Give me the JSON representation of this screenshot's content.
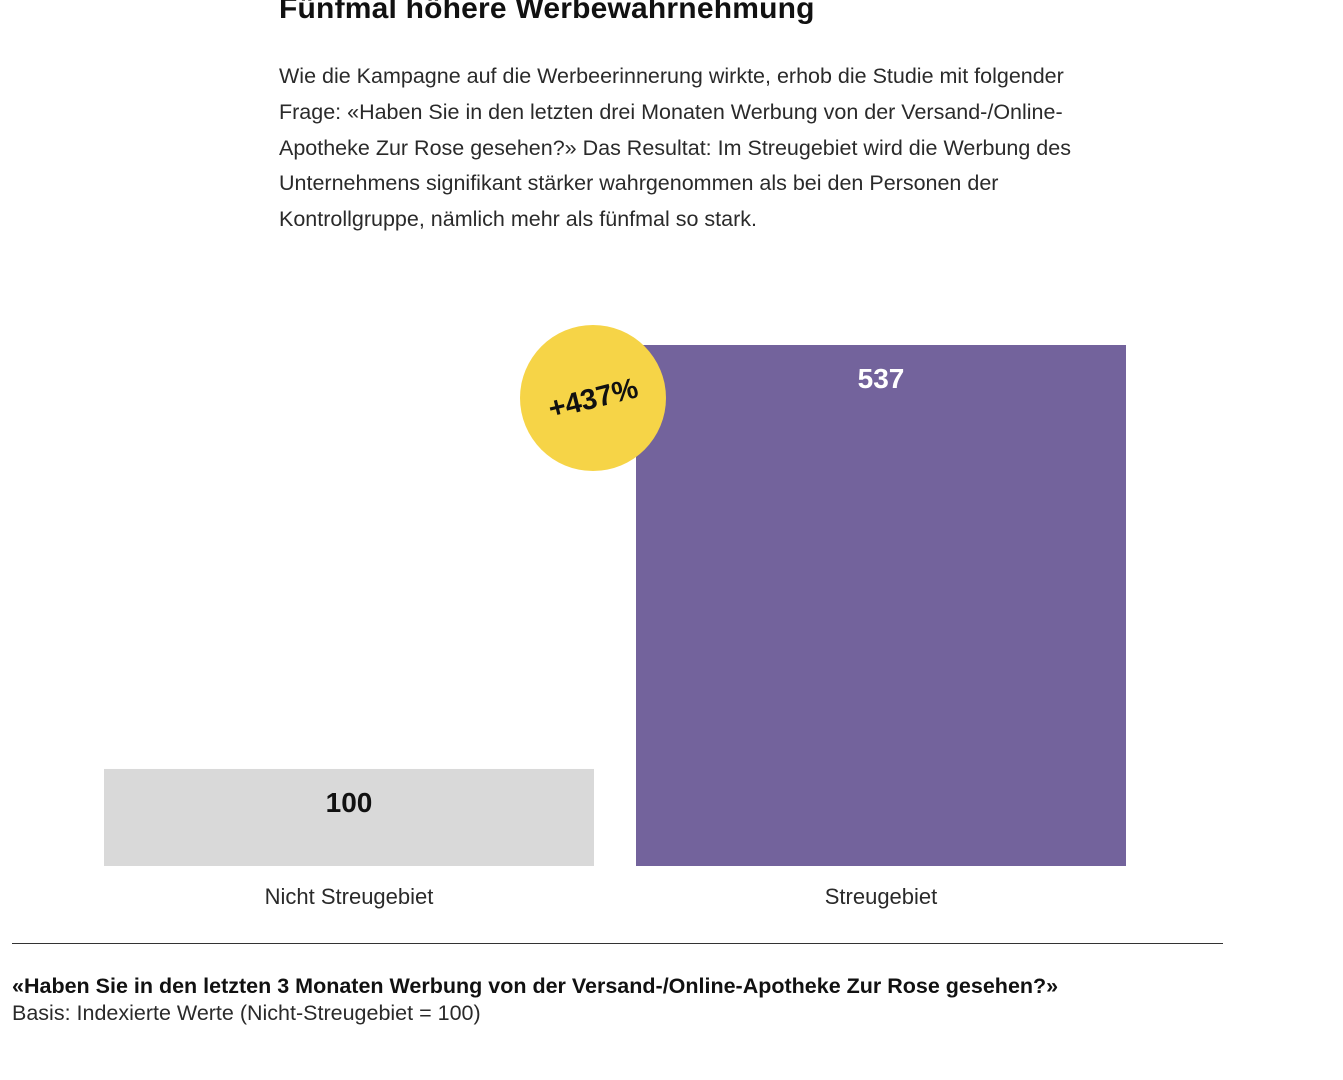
{
  "title": "Fünfmal höhere Werbewahrnehmung",
  "intro": "Wie die Kampagne auf die Werbeerinnerung wirkte, erhob die Studie mit folgender Frage: «Haben Sie in den letzten drei Monaten Werbung von der Versand-/Online-Apotheke Zur Rose gesehen?» Das Resultat: Im Streugebiet wird die Werbung des Unternehmens signifikant stärker wahrgenommen als bei den Personen der Kontrollgruppe, nämlich mehr als fünfmal so stark.",
  "chart_data": {
    "type": "bar",
    "categories": [
      "Nicht Streugebiet",
      "Streugebiet"
    ],
    "values": [
      100,
      537
    ],
    "value_labels": [
      "100",
      "537"
    ],
    "colors": [
      "#d9d9d9",
      "#73639c"
    ],
    "label_colors": [
      "#111111",
      "#ffffff"
    ],
    "ylim": [
      0,
      537
    ],
    "grid": false,
    "annotation": {
      "text": "+437%",
      "color": "#f6d447",
      "attached_to": "Streugebiet"
    }
  },
  "footer": {
    "question": "«Haben Sie in den letzten 3 Monaten Werbung von der Versand-/Online-Apotheke Zur Rose gesehen?»",
    "basis": "Basis: Indexierte Werte (Nicht-Streugebiet = 100)"
  }
}
